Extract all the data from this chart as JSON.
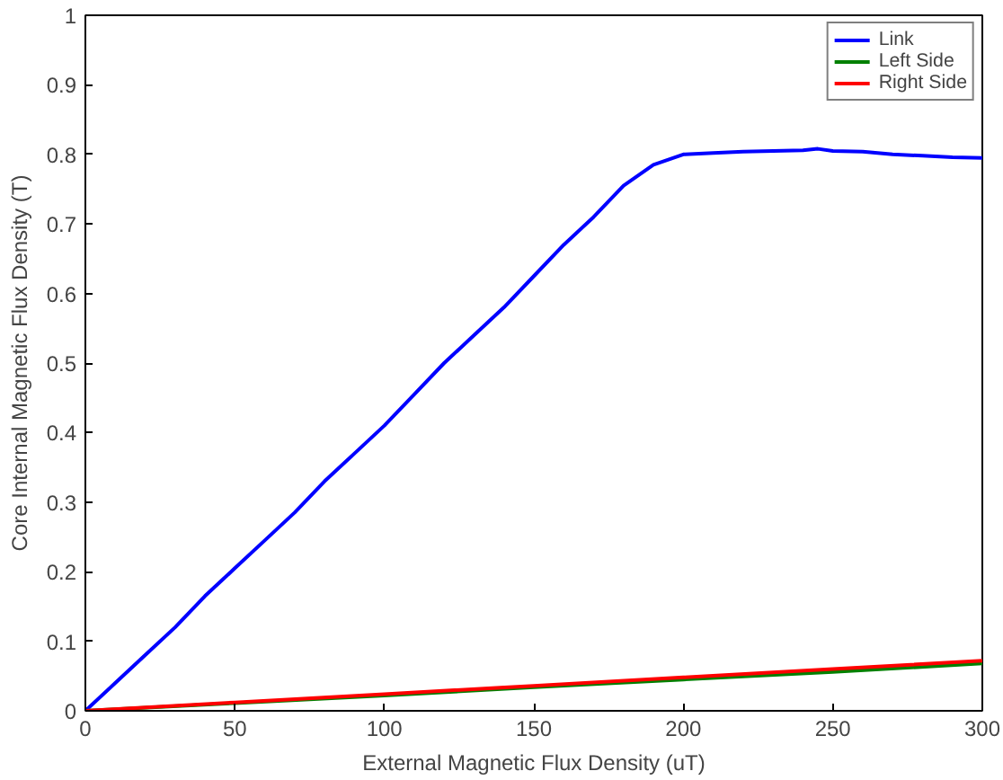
{
  "chart_data": {
    "type": "line",
    "xlabel": "External Magnetic Flux Density (uT)",
    "ylabel": "Core Internal Magnetic Flux Density (T)",
    "xlim": [
      0,
      300
    ],
    "ylim": [
      0,
      1
    ],
    "xticks": [
      0,
      50,
      100,
      150,
      200,
      250,
      300
    ],
    "yticks": [
      0,
      0.1,
      0.2,
      0.3,
      0.4,
      0.5,
      0.6,
      0.7,
      0.8,
      0.9,
      1
    ],
    "grid": false,
    "legend": "top right",
    "line_style": "solid",
    "series": [
      {
        "name": "Link",
        "color": "#0000ff",
        "x": [
          0,
          10,
          20,
          30,
          40,
          50,
          60,
          70,
          80,
          90,
          100,
          110,
          120,
          130,
          140,
          150,
          160,
          170,
          180,
          190,
          200,
          210,
          220,
          230,
          240,
          245,
          250,
          260,
          270,
          280,
          290,
          300
        ],
        "values": [
          0,
          0.04,
          0.08,
          0.12,
          0.165,
          0.205,
          0.245,
          0.285,
          0.33,
          0.37,
          0.41,
          0.455,
          0.5,
          0.54,
          0.58,
          0.625,
          0.67,
          0.71,
          0.755,
          0.785,
          0.8,
          0.802,
          0.804,
          0.805,
          0.806,
          0.808,
          0.805,
          0.804,
          0.8,
          0.798,
          0.796,
          0.795
        ]
      },
      {
        "name": "Left Side",
        "color": "#008000",
        "x": [
          0,
          50,
          100,
          150,
          200,
          250,
          300
        ],
        "values": [
          0,
          0.011,
          0.022,
          0.034,
          0.045,
          0.056,
          0.068
        ]
      },
      {
        "name": "Right Side",
        "color": "#ff0000",
        "x": [
          0,
          50,
          100,
          150,
          200,
          250,
          300
        ],
        "values": [
          0,
          0.012,
          0.024,
          0.036,
          0.048,
          0.06,
          0.072
        ]
      }
    ]
  }
}
